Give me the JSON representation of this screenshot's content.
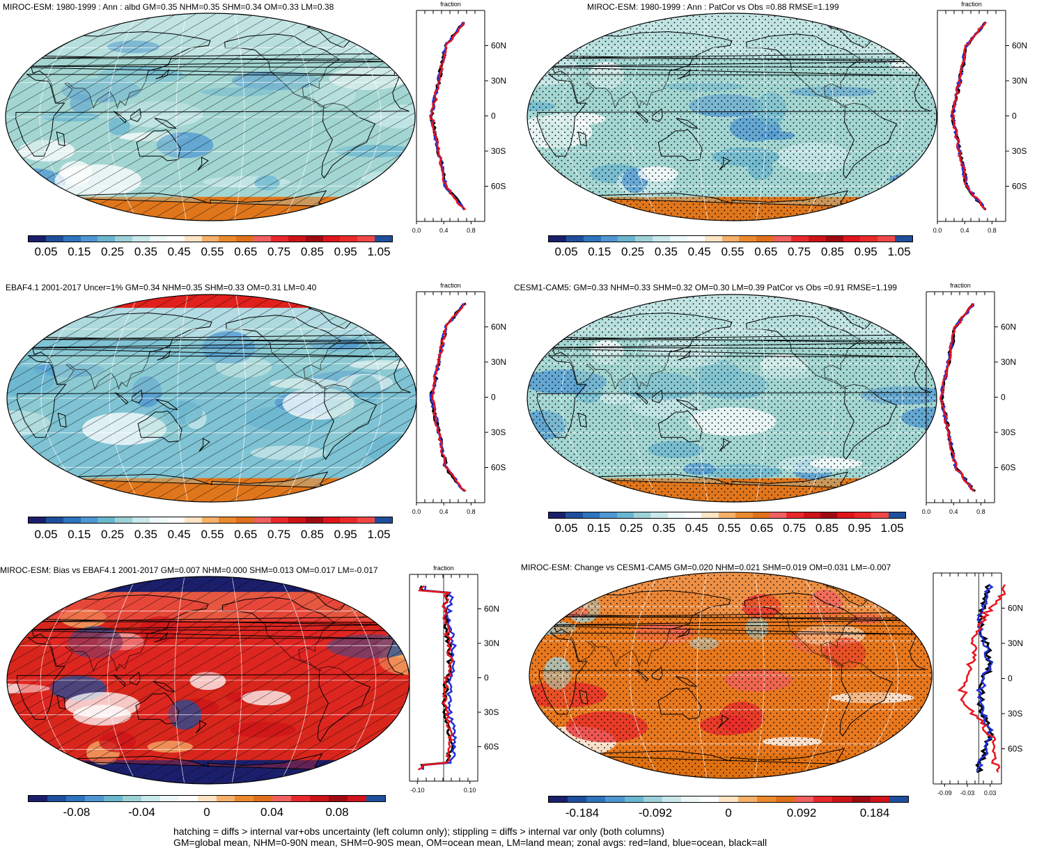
{
  "panels": [
    {
      "id": "p1",
      "title": "MIROC-ESM: 1980-1999 : Ann : albd GM=0.35 NHM=0.35 SHM=0.34 OM=0.33 LM=0.38",
      "bg_color": "#a3d6d2",
      "pattern": "hatch",
      "colorbar_labels": [
        "0.05",
        "0.15",
        "0.25",
        "0.35",
        "0.45",
        "0.55",
        "0.65",
        "0.75",
        "0.85",
        "0.95",
        "1.05"
      ],
      "zonal": {
        "header": "fraction",
        "x_ticks": [
          "0.0",
          "0.4",
          "0.8"
        ],
        "x_range": [
          0,
          1
        ],
        "y_ticks": [
          "60N",
          "30N",
          "0",
          "30S",
          "60S"
        ]
      }
    },
    {
      "id": "p2",
      "title": "MIROC-ESM: 1980-1999 : Ann : PatCor vs Obs =0.88 RMSE=1.199",
      "bg_color": "#a3d6d2",
      "pattern": "stipple",
      "colorbar_labels": [
        "0.05",
        "0.15",
        "0.25",
        "0.35",
        "0.45",
        "0.55",
        "0.65",
        "0.75",
        "0.85",
        "0.95",
        "1.05"
      ],
      "zonal": {
        "header": "fraction",
        "x_ticks": [
          "0.0",
          "0.4",
          "0.8"
        ],
        "x_range": [
          0,
          1
        ],
        "y_ticks": [
          "60N",
          "30N",
          "0",
          "30S",
          "60S"
        ]
      }
    },
    {
      "id": "p3",
      "title": "EBAF4.1 2001-2017 Uncer=1% GM=0.34 NHM=0.35 SHM=0.33 OM=0.31 LM=0.40",
      "bg_color": "#7fc3d4",
      "pattern": "hatch",
      "colorbar_labels": [
        "0.05",
        "0.15",
        "0.25",
        "0.35",
        "0.45",
        "0.55",
        "0.65",
        "0.75",
        "0.85",
        "0.95",
        "1.05"
      ],
      "zonal": {
        "header": "fraction",
        "x_ticks": [
          "0.0",
          "0.4",
          "0.8"
        ],
        "x_range": [
          0,
          1
        ],
        "y_ticks": [
          "60N",
          "30N",
          "0",
          "30S",
          "60S"
        ]
      }
    },
    {
      "id": "p4",
      "title": "CESM1-CAM5: GM=0.33 NHM=0.33 SHM=0.32 OM=0.30 LM=0.39 PatCor vs Obs =0.91 RMSE=1.199",
      "bg_color": "#a3d6d2",
      "pattern": "stipple",
      "colorbar_labels": [
        "0.05",
        "0.15",
        "0.25",
        "0.35",
        "0.45",
        "0.55",
        "0.65",
        "0.75",
        "0.85",
        "0.95",
        "1.05"
      ],
      "zonal": {
        "header": "fraction",
        "x_ticks": [
          "0.0",
          "0.4",
          "0.8"
        ],
        "x_range": [
          0,
          1
        ],
        "y_ticks": [
          "60N",
          "30N",
          "0",
          "30S",
          "60S"
        ]
      }
    },
    {
      "id": "p5",
      "title": "MIROC-ESM: Bias vs EBAF4.1 2001-2017 GM=0.007 NHM=0.000 SHM=0.013 OM=0.017 LM=-0.017",
      "bg_color": "#d9261c",
      "pattern": "hatch",
      "colorbar_labels": [
        "-0.08",
        "-0.04",
        "0",
        "0.04",
        "0.08"
      ],
      "zonal": {
        "header": "fraction",
        "x_ticks": [
          "-0.10",
          "0.10"
        ],
        "x_range": [
          -0.13,
          0.13
        ],
        "y_ticks": [
          "60N",
          "30N",
          "0",
          "30S",
          "60S"
        ]
      }
    },
    {
      "id": "p6",
      "title": "MIROC-ESM: Change vs CESM1-CAM5 GM=0.020 NHM=0.021 SHM=0.019 OM=0.031 LM=-0.007",
      "bg_color": "#e8781e",
      "pattern": "stipple",
      "colorbar_labels": [
        "-0.184",
        "-0.092",
        "0",
        "0.092",
        "0.184"
      ],
      "zonal": {
        "header": "",
        "x_ticks": [
          "-0.09",
          "-0.03",
          "0.03"
        ],
        "x_range": [
          -0.12,
          0.06
        ],
        "y_ticks": [
          "60N",
          "30N",
          "0",
          "30S",
          "60S"
        ]
      }
    }
  ],
  "colorbar_colors": [
    "#1b1f6b",
    "#1f4f9c",
    "#2e74be",
    "#4e97d2",
    "#6ab6cf",
    "#9dd1d8",
    "#c9e8ea",
    "#eef8f8",
    "#ffffff",
    "#fce4c4",
    "#f5b06a",
    "#ea8a2e",
    "#e0701c",
    "#f06060",
    "#e8282c",
    "#cc1418",
    "#a00a12",
    "#e0141c",
    "#ea2a2a",
    "#f04848",
    "#1f4f9c"
  ],
  "colorbar_colors_diff": [
    "#1b1f6b",
    "#1f4f9c",
    "#2e74be",
    "#4e97d2",
    "#6ab6cf",
    "#9dd1d8",
    "#c9e8ea",
    "#eef8f8",
    "#ffffff",
    "#fce4c4",
    "#f5b06a",
    "#ea8a2e",
    "#e0701c",
    "#f06060",
    "#e8282c",
    "#cc1418",
    "#a00a12",
    "#d0141c",
    "#1f4f9c"
  ],
  "zonal_series_colors": {
    "land": "#e8141c",
    "ocean": "#1f2fd6",
    "all": "#000000"
  },
  "footer": [
    "hatching = diffs > internal var+obs uncertainty (left column only); stippling = diffs > internal var only (both columns)",
    "GM=global mean, NHM=0-90N mean, SHM=0-90S mean, OM=ocean mean, LM=land mean; zonal avgs: red=land, blue=ocean, black=all"
  ]
}
